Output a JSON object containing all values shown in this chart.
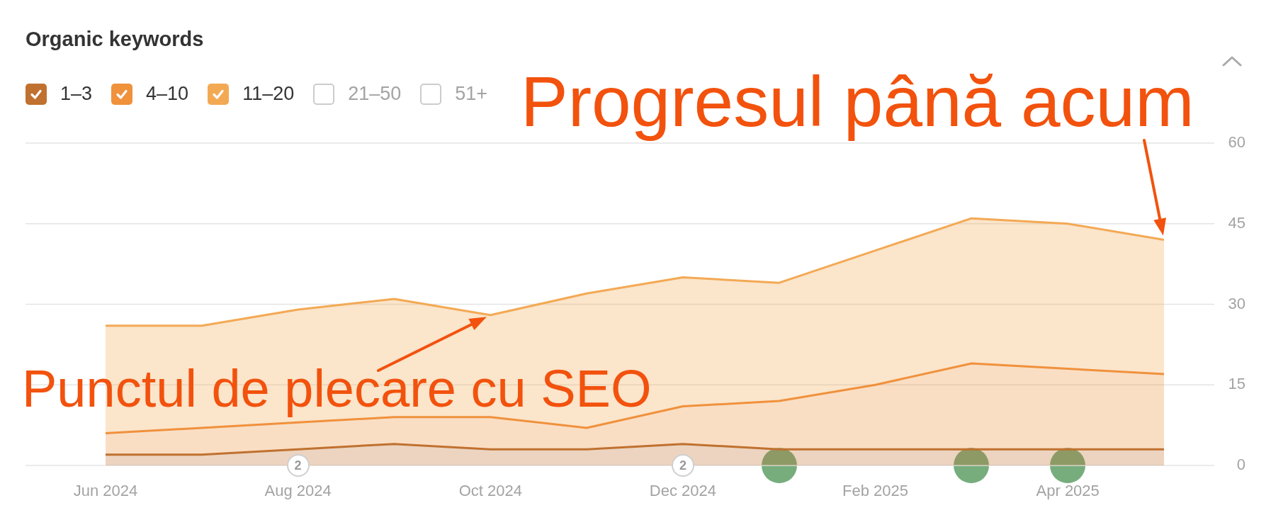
{
  "chart_data": {
    "type": "area",
    "title": "Organic keywords",
    "categories": [
      "Jun 2024",
      null,
      "Aug 2024",
      null,
      "Oct 2024",
      null,
      "Dec 2024",
      null,
      "Feb 2025",
      null,
      "Apr 2025",
      null
    ],
    "series": [
      {
        "name": "1–3",
        "color": "#c0712f",
        "values": [
          2,
          2,
          3,
          4,
          3,
          3,
          4,
          3,
          3,
          3,
          3,
          3
        ]
      },
      {
        "name": "4–10",
        "color": "#f0913c",
        "values": [
          4,
          5,
          5,
          5,
          6,
          4,
          7,
          9,
          12,
          16,
          15,
          14
        ]
      },
      {
        "name": "11–20",
        "color": "#f3a954",
        "values": [
          20,
          19,
          21,
          22,
          19,
          25,
          24,
          22,
          25,
          27,
          27,
          25
        ]
      },
      {
        "name": "21–50",
        "values": [
          null,
          null,
          null,
          null,
          null,
          null,
          null,
          null,
          null,
          null,
          null,
          null
        ]
      },
      {
        "name": "51+",
        "values": [
          null,
          null,
          null,
          null,
          null,
          null,
          null,
          null,
          null,
          null,
          null,
          null
        ]
      }
    ],
    "stacked": true,
    "ylim": [
      0,
      60
    ],
    "yticks": [
      0,
      15,
      30,
      45,
      60
    ],
    "grid": "y",
    "legend": "top left",
    "marker": "none",
    "annotations": [
      {
        "text": "Punctul de plecare cu SEO",
        "x": "Oct 2024",
        "y": 28
      },
      "Progresul până acum",
      {
        "text": "2",
        "x": "Aug 2024"
      },
      {
        "text": "2",
        "x": "Dec 2024"
      }
    ]
  }
}
